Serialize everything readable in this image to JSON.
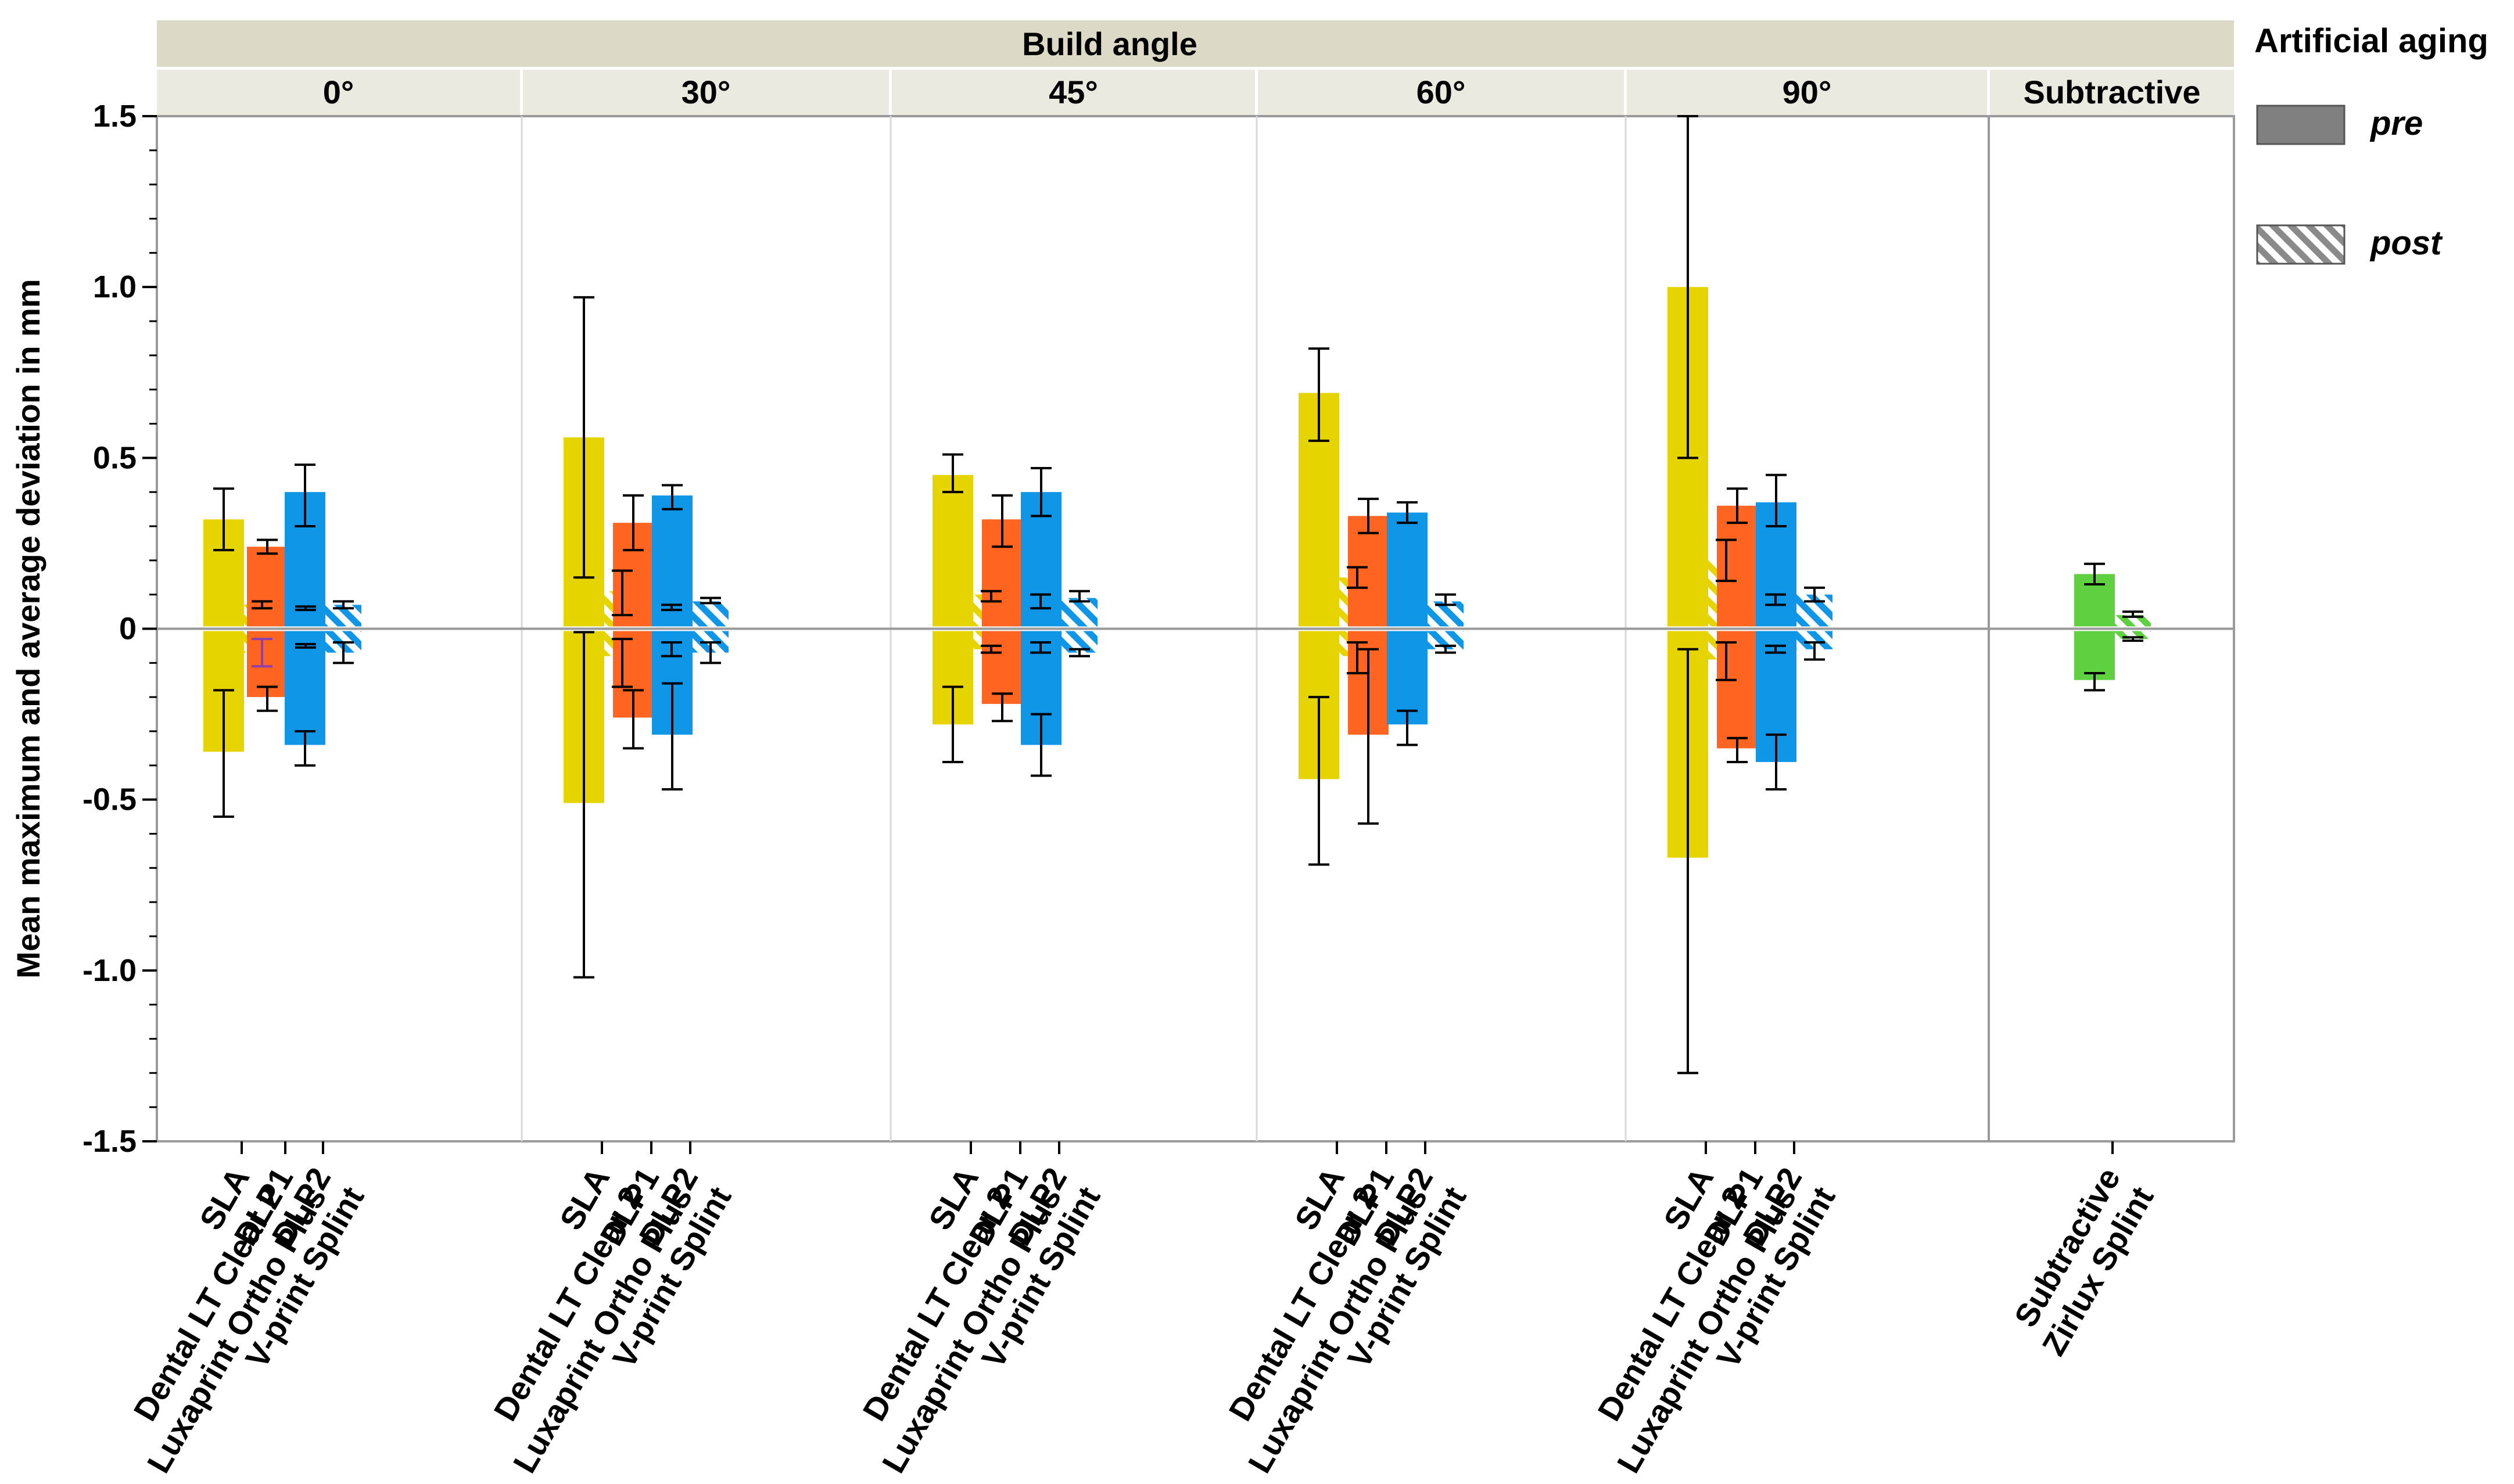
{
  "chart_data": {
    "type": "bar",
    "title": "",
    "ylabel": "Mean maximum and average deviation in mm",
    "ylim": [
      -1.5,
      1.5
    ],
    "yticks": [
      "-1.5",
      "-1.0",
      "-0.5",
      "0",
      "0.5",
      "1.0",
      "1.5"
    ],
    "header_title": "Build angle",
    "panels": [
      {
        "label": "0°",
        "groups": [
          {
            "label": [
              "SLA",
              "Dental LT Clear 2"
            ],
            "color": "#E6D400",
            "pre_pos": 0.32,
            "pre_pos_err": [
              0.23,
              0.41
            ],
            "pre_neg": -0.36,
            "pre_neg_err": [
              -0.55,
              -0.18
            ],
            "post_pos": 0.07,
            "post_pos_err": [
              0.06,
              0.08
            ],
            "post_neg": -0.07,
            "post_neg_err": [
              -0.11,
              -0.03
            ]
          },
          {
            "label": [
              "DLP1",
              "Luxaprint Ortho Plus"
            ],
            "color": "#FF6420",
            "pre_pos": 0.24,
            "pre_pos_err": [
              0.22,
              0.26
            ],
            "pre_neg": -0.2,
            "pre_neg_err": [
              -0.24,
              -0.17
            ],
            "post_pos": 0.06,
            "post_pos_err": [
              0.055,
              0.065
            ],
            "post_neg": -0.05,
            "post_neg_err": [
              -0.055,
              -0.045
            ]
          },
          {
            "label": [
              "DLP2",
              "V-print Splint"
            ],
            "color": "#0F96E6",
            "pre_pos": 0.4,
            "pre_pos_err": [
              0.3,
              0.48
            ],
            "pre_neg": -0.34,
            "pre_neg_err": [
              -0.4,
              -0.3
            ],
            "post_pos": 0.07,
            "post_pos_err": [
              0.06,
              0.08
            ],
            "post_neg": -0.07,
            "post_neg_err": [
              -0.1,
              -0.04
            ]
          }
        ]
      },
      {
        "label": "30°",
        "groups": [
          {
            "label": [
              "SLA",
              "Dental LT Clear 2"
            ],
            "color": "#E6D400",
            "pre_pos": 0.56,
            "pre_pos_err": [
              0.15,
              0.97
            ],
            "pre_neg": -0.51,
            "pre_neg_err": [
              -1.02,
              -0.01
            ],
            "post_pos": 0.11,
            "post_pos_err": [
              0.04,
              0.17
            ],
            "post_neg": -0.08,
            "post_neg_err": [
              -0.17,
              -0.03
            ]
          },
          {
            "label": [
              "DLP1",
              "Luxaprint Ortho Plus"
            ],
            "color": "#FF6420",
            "pre_pos": 0.31,
            "pre_pos_err": [
              0.23,
              0.39
            ],
            "pre_neg": -0.26,
            "pre_neg_err": [
              -0.35,
              -0.18
            ],
            "post_pos": 0.06,
            "post_pos_err": [
              0.055,
              0.07
            ],
            "post_neg": -0.06,
            "post_neg_err": [
              -0.08,
              -0.04
            ]
          },
          {
            "label": [
              "DLP2",
              "V-print Splint"
            ],
            "color": "#0F96E6",
            "pre_pos": 0.39,
            "pre_pos_err": [
              0.35,
              0.42
            ],
            "pre_neg": -0.31,
            "pre_neg_err": [
              -0.47,
              -0.16
            ],
            "post_pos": 0.08,
            "post_pos_err": [
              0.075,
              0.09
            ],
            "post_neg": -0.07,
            "post_neg_err": [
              -0.1,
              -0.04
            ]
          }
        ]
      },
      {
        "label": "45°",
        "groups": [
          {
            "label": [
              "SLA",
              "Dental LT Clear 2"
            ],
            "color": "#E6D400",
            "pre_pos": 0.45,
            "pre_pos_err": [
              0.4,
              0.51
            ],
            "pre_neg": -0.28,
            "pre_neg_err": [
              -0.39,
              -0.17
            ],
            "post_pos": 0.1,
            "post_pos_err": [
              0.08,
              0.11
            ],
            "post_neg": -0.06,
            "post_neg_err": [
              -0.07,
              -0.05
            ]
          },
          {
            "label": [
              "DLP1",
              "Luxaprint Ortho Plus"
            ],
            "color": "#FF6420",
            "pre_pos": 0.32,
            "pre_pos_err": [
              0.24,
              0.39
            ],
            "pre_neg": -0.22,
            "pre_neg_err": [
              -0.27,
              -0.19
            ],
            "post_pos": 0.08,
            "post_pos_err": [
              0.06,
              0.1
            ],
            "post_neg": -0.06,
            "post_neg_err": [
              -0.07,
              -0.04
            ]
          },
          {
            "label": [
              "DLP2",
              "V-print Splint"
            ],
            "color": "#0F96E6",
            "pre_pos": 0.4,
            "pre_pos_err": [
              0.33,
              0.47
            ],
            "pre_neg": -0.34,
            "pre_neg_err": [
              -0.43,
              -0.25
            ],
            "post_pos": 0.09,
            "post_pos_err": [
              0.08,
              0.11
            ],
            "post_neg": -0.07,
            "post_neg_err": [
              -0.08,
              -0.06
            ]
          }
        ]
      },
      {
        "label": "60°",
        "groups": [
          {
            "label": [
              "SLA",
              "Dental LT Clear 2"
            ],
            "color": "#E6D400",
            "pre_pos": 0.69,
            "pre_pos_err": [
              0.55,
              0.82
            ],
            "pre_neg": -0.44,
            "pre_neg_err": [
              -0.69,
              -0.2
            ],
            "post_pos": 0.15,
            "post_pos_err": [
              0.12,
              0.18
            ],
            "post_neg": -0.08,
            "post_neg_err": [
              -0.13,
              -0.04
            ]
          },
          {
            "label": [
              "DLP1",
              "Luxaprint Ortho Plus"
            ],
            "color": "#FF6420",
            "pre_pos": 0.33,
            "pre_pos_err": [
              0.28,
              0.38
            ],
            "pre_neg": -0.31,
            "pre_neg_err": [
              -0.57,
              -0.06
            ]
          },
          {
            "label": [
              "DLP2",
              "V-print Splint"
            ],
            "color": "#0F96E6",
            "pre_pos": 0.34,
            "pre_pos_err": [
              0.31,
              0.37
            ],
            "pre_neg": -0.28,
            "pre_neg_err": [
              -0.34,
              -0.24
            ],
            "post_pos": 0.08,
            "post_pos_err": [
              0.07,
              0.1
            ],
            "post_neg": -0.06,
            "post_neg_err": [
              -0.07,
              -0.05
            ]
          }
        ]
      },
      {
        "label": "90°",
        "groups": [
          {
            "label": [
              "SLA",
              "Dental LT Clear 2"
            ],
            "color": "#E6D400",
            "pre_pos": 1.0,
            "pre_pos_err": [
              0.5,
              1.5
            ],
            "pre_neg": -0.67,
            "pre_neg_err": [
              -1.3,
              -0.06
            ],
            "post_pos": 0.2,
            "post_pos_err": [
              0.14,
              0.26
            ],
            "post_neg": -0.09,
            "post_neg_err": [
              -0.15,
              -0.04
            ]
          },
          {
            "label": [
              "DLP1",
              "Luxaprint Ortho Plus"
            ],
            "color": "#FF6420",
            "pre_pos": 0.36,
            "pre_pos_err": [
              0.31,
              0.41
            ],
            "pre_neg": -0.35,
            "pre_neg_err": [
              -0.39,
              -0.32
            ],
            "post_pos": 0.09,
            "post_pos_err": [
              0.07,
              0.1
            ],
            "post_neg": -0.06,
            "post_neg_err": [
              -0.07,
              -0.05
            ]
          },
          {
            "label": [
              "DLP2",
              "V-print Splint"
            ],
            "color": "#0F96E6",
            "pre_pos": 0.37,
            "pre_pos_err": [
              0.3,
              0.45
            ],
            "pre_neg": -0.39,
            "pre_neg_err": [
              -0.47,
              -0.31
            ],
            "post_pos": 0.1,
            "post_pos_err": [
              0.08,
              0.12
            ],
            "post_neg": -0.06,
            "post_neg_err": [
              -0.09,
              -0.04
            ]
          }
        ]
      },
      {
        "label": "Subtractive",
        "groups": [
          {
            "label": [
              "Subtractive",
              "Zirlux Splint"
            ],
            "color": "#5FD040",
            "pre_pos": 0.16,
            "pre_pos_err": [
              0.13,
              0.19
            ],
            "pre_neg": -0.15,
            "pre_neg_err": [
              -0.18,
              -0.13
            ],
            "post_pos": 0.04,
            "post_pos_err": [
              0.035,
              0.05
            ],
            "post_neg": -0.03,
            "post_neg_err": [
              -0.035,
              -0.025
            ]
          }
        ]
      }
    ],
    "legend": {
      "title": "Artificial aging",
      "position": "right",
      "entries": [
        {
          "label": "pre",
          "style": "solid"
        },
        {
          "label": "post",
          "style": "hatched"
        }
      ]
    },
    "grid": false
  }
}
